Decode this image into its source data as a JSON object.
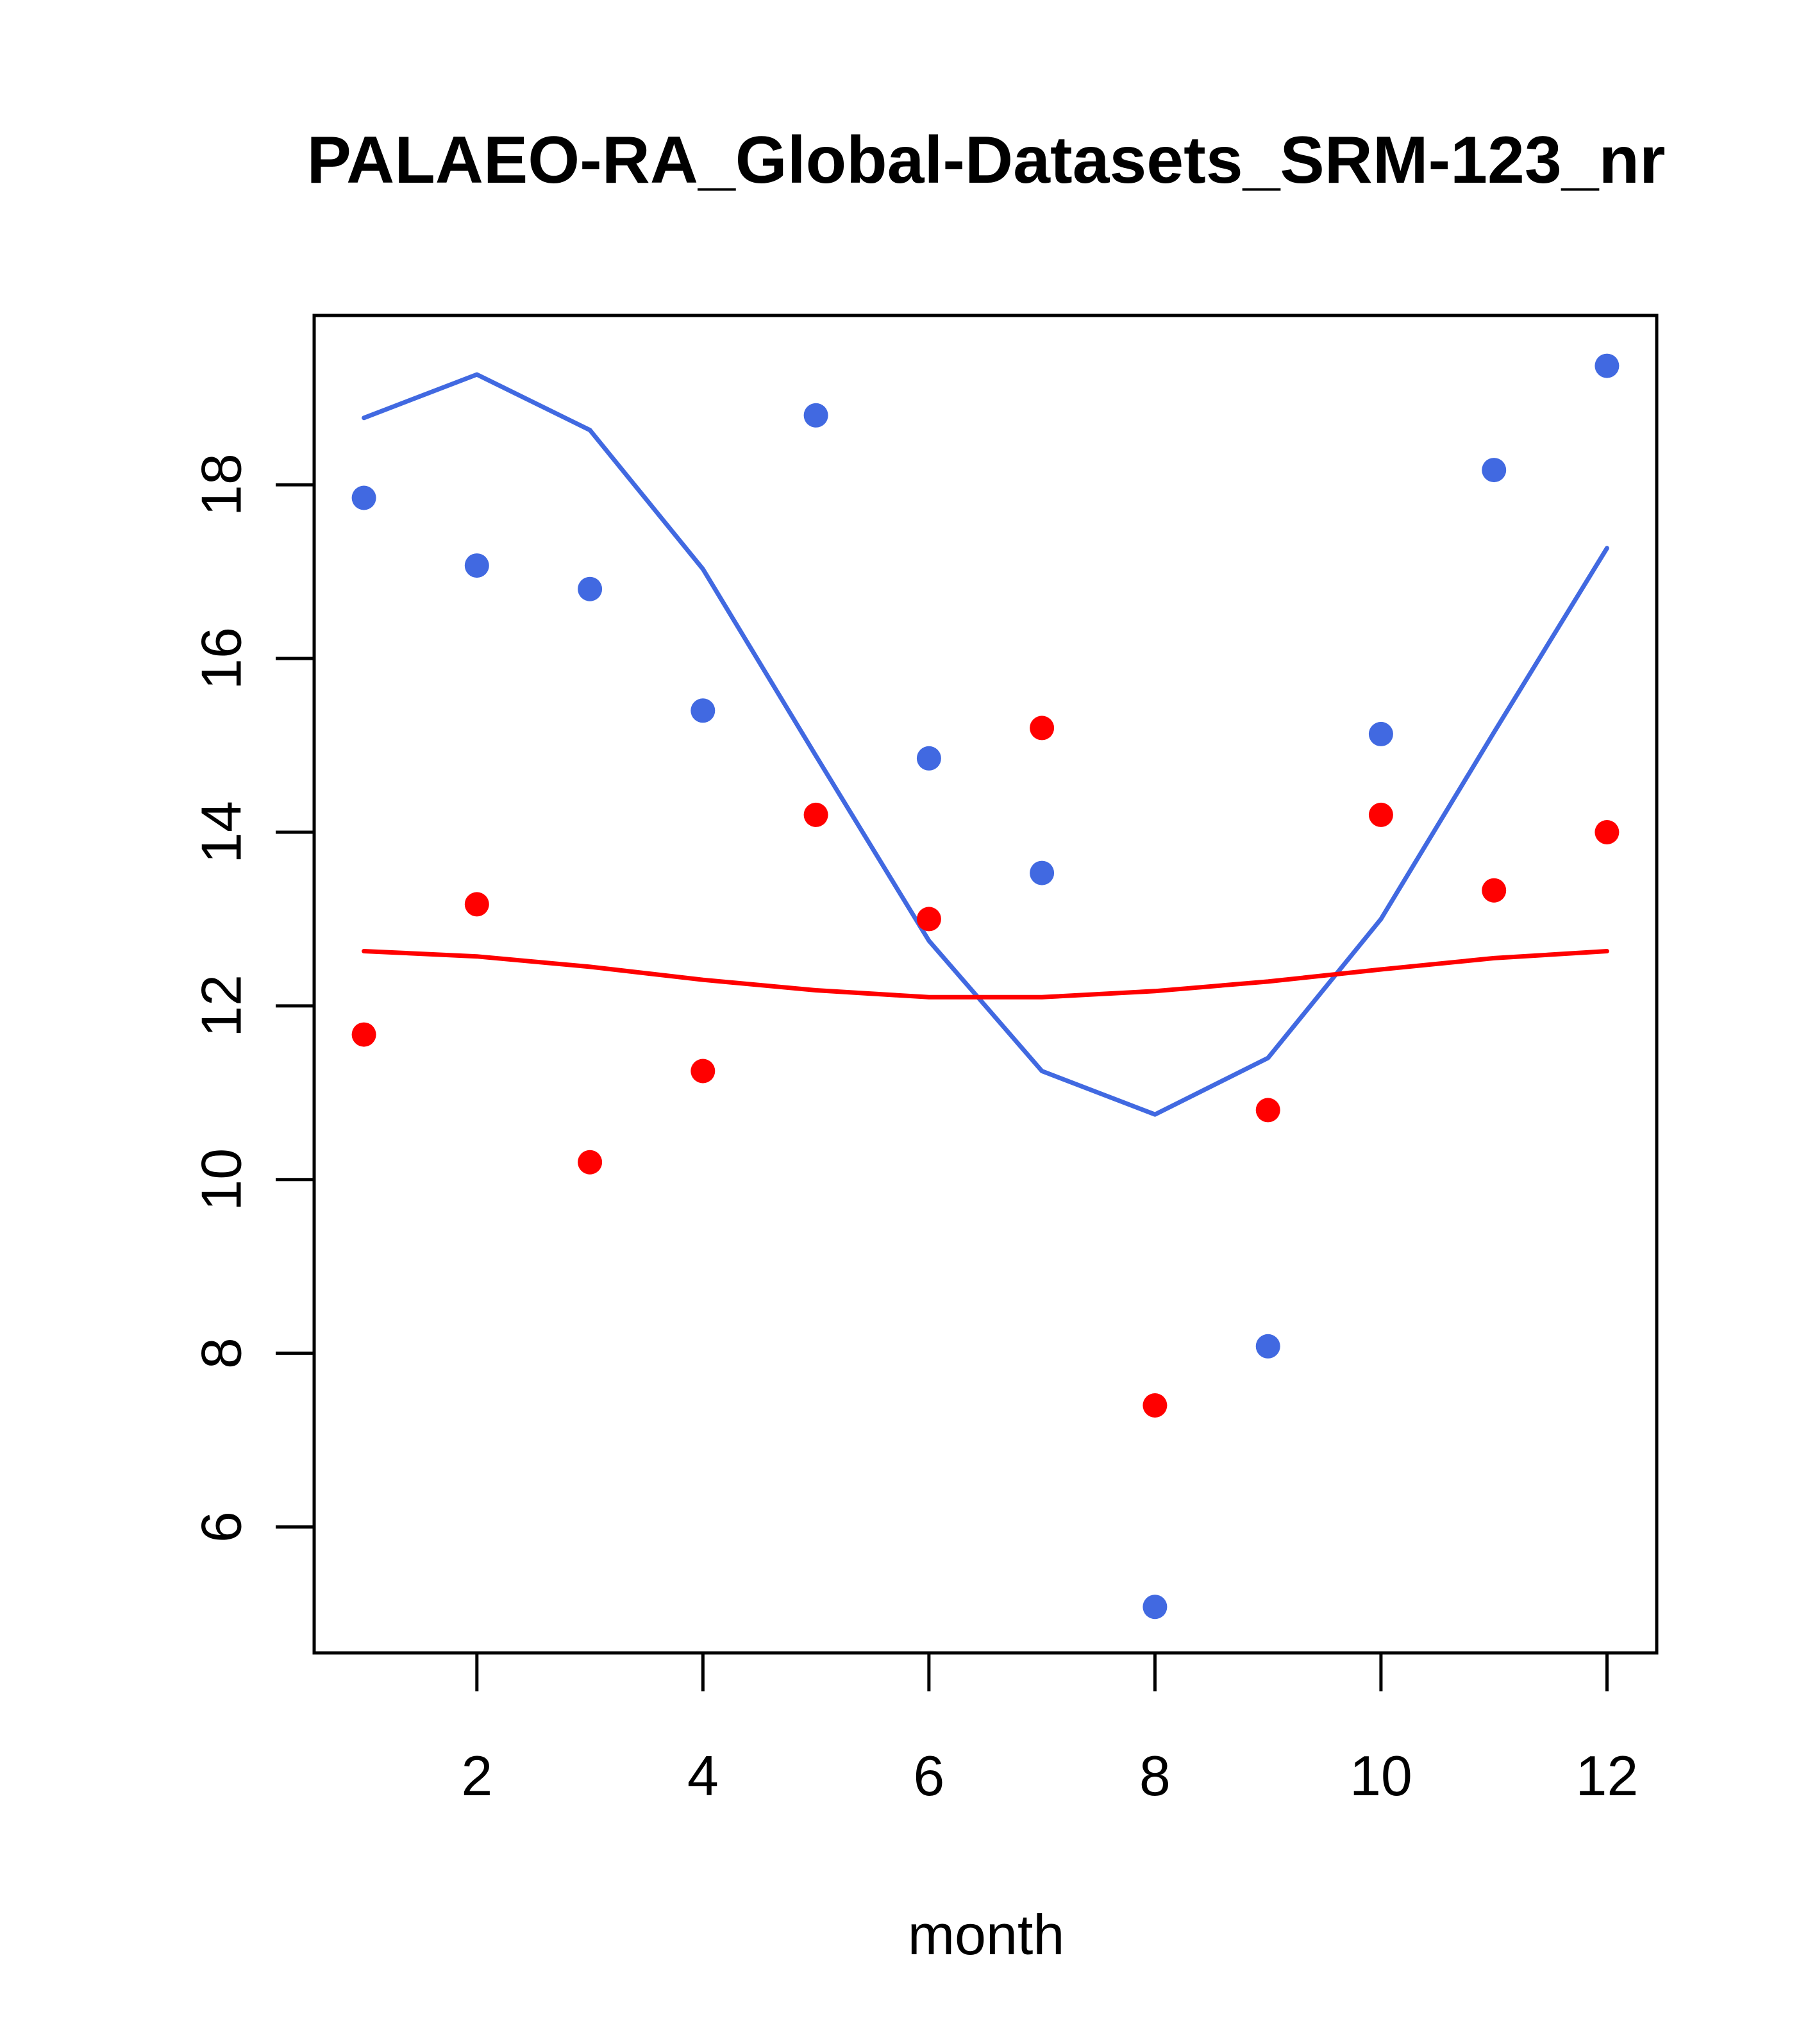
{
  "chart_data": {
    "type": "scatter",
    "title": "PALAEO-RA_Global-Datasets_SRM-123_nr",
    "xlabel": "month",
    "ylabel": "",
    "xlim": [
      0.56,
      12.44
    ],
    "ylim": [
      4.55,
      19.95
    ],
    "xticks": [
      2,
      4,
      6,
      8,
      10,
      12
    ],
    "yticks": [
      6,
      8,
      10,
      12,
      14,
      16,
      18
    ],
    "xtick_labels": [
      "2",
      "4",
      "6",
      "8",
      "10",
      "12"
    ],
    "ytick_labels": [
      "6",
      "8",
      "10",
      "12",
      "14",
      "16",
      "18"
    ],
    "grid": false,
    "series": [
      {
        "name": "blue points",
        "kind": "points",
        "color": "#4169E1",
        "x": [
          1,
          2,
          3,
          4,
          5,
          6,
          7,
          8,
          9,
          10,
          11,
          12
        ],
        "y": [
          17.85,
          17.07,
          16.8,
          15.4,
          18.8,
          14.85,
          13.53,
          5.08,
          8.08,
          15.13,
          18.17,
          19.37
        ]
      },
      {
        "name": "red points",
        "kind": "points",
        "color": "#FF0000",
        "x": [
          1,
          2,
          3,
          4,
          5,
          6,
          7,
          8,
          9,
          10,
          11,
          12
        ],
        "y": [
          11.67,
          13.17,
          10.2,
          11.25,
          14.2,
          13.0,
          15.2,
          7.4,
          10.8,
          14.2,
          13.33,
          14.0
        ]
      },
      {
        "name": "blue line",
        "kind": "line",
        "color": "#4169E1",
        "x": [
          1,
          2,
          3,
          4,
          5,
          6,
          7,
          8,
          9,
          10,
          11,
          12
        ],
        "y": [
          18.77,
          19.27,
          18.63,
          17.03,
          14.88,
          12.75,
          11.25,
          10.75,
          11.4,
          13.0,
          15.15,
          17.27
        ]
      },
      {
        "name": "red line",
        "kind": "line",
        "color": "#FF0000",
        "x": [
          1,
          2,
          3,
          4,
          5,
          6,
          7,
          8,
          9,
          10,
          11,
          12
        ],
        "y": [
          12.63,
          12.57,
          12.45,
          12.3,
          12.18,
          12.1,
          12.1,
          12.17,
          12.28,
          12.42,
          12.55,
          12.63
        ]
      }
    ]
  }
}
